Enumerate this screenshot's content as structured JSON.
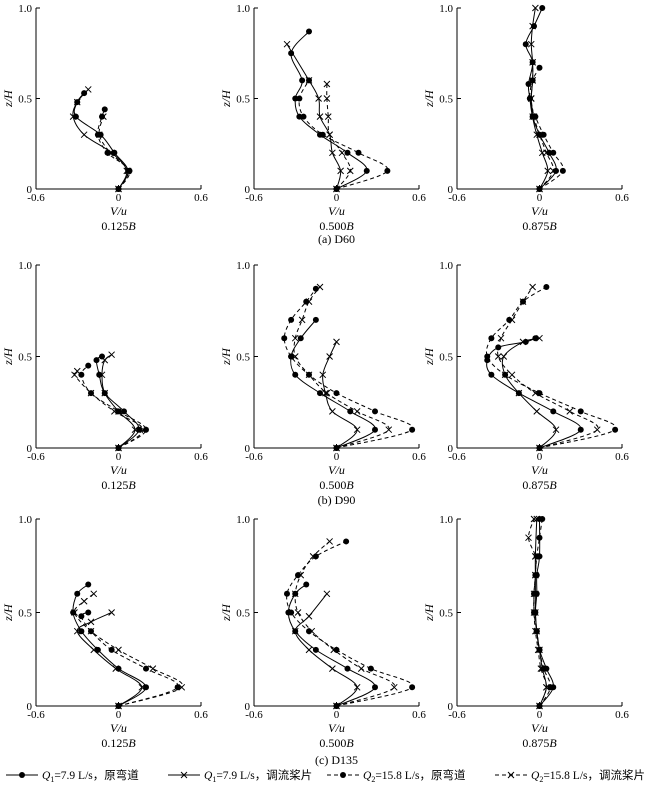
{
  "figure": {
    "row_captions": [
      "(a) D60",
      "(b) D90",
      "(c) D135"
    ],
    "legend": [
      {
        "sym": "Q",
        "sub": "1",
        "text": "=7.9 L/s，原弯道",
        "marker": "dot",
        "dash": false
      },
      {
        "sym": "Q",
        "sub": "1",
        "text": "=7.9 L/s，调流桨片",
        "marker": "cross",
        "dash": false
      },
      {
        "sym": "Q",
        "sub": "2",
        "text": "=15.8 L/s，原弯道",
        "marker": "dot",
        "dash": true
      },
      {
        "sym": "Q",
        "sub": "2",
        "text": "=15.8 L/s，调流桨片",
        "marker": "cross",
        "dash": true
      }
    ]
  },
  "chart_data": [
    {
      "type": "line",
      "row": 0,
      "col": 0,
      "position": "0.125B",
      "xlabel": "V/u",
      "ylabel": "z/H",
      "xlim": [
        -0.6,
        0.6
      ],
      "ylim": [
        0,
        1.0
      ],
      "xticks": [
        "-0.6",
        "0",
        "0.6"
      ],
      "yticks": [
        "0",
        "0.5",
        "1.0"
      ],
      "series": [
        {
          "marker": "dot",
          "dash": false,
          "x": [
            0.0,
            0.07,
            -0.03,
            -0.13,
            -0.31,
            -0.3,
            -0.25
          ],
          "y": [
            0.0,
            0.1,
            0.2,
            0.3,
            0.4,
            0.48,
            0.53
          ]
        },
        {
          "marker": "cross",
          "dash": false,
          "x": [
            0.0,
            0.06,
            -0.05,
            -0.25,
            -0.33,
            -0.3,
            -0.22
          ],
          "y": [
            0.0,
            0.1,
            0.2,
            0.3,
            0.4,
            0.48,
            0.55
          ]
        },
        {
          "marker": "dot",
          "dash": true,
          "x": [
            0.0,
            0.08,
            -0.08,
            -0.15,
            -0.12,
            -0.1
          ],
          "y": [
            0.0,
            0.1,
            0.2,
            0.3,
            0.4,
            0.44
          ]
        },
        {
          "marker": "cross",
          "dash": true,
          "x": [
            0.0,
            0.07,
            -0.06,
            -0.14,
            -0.11
          ],
          "y": [
            0.0,
            0.1,
            0.2,
            0.3,
            0.4
          ]
        }
      ]
    },
    {
      "type": "line",
      "row": 0,
      "col": 1,
      "position": "0.500B",
      "xlabel": "V/u",
      "ylabel": "z/H",
      "xlim": [
        -0.6,
        0.6
      ],
      "ylim": [
        0,
        1.0
      ],
      "xticks": [
        "-0.6",
        "0",
        "0.6"
      ],
      "yticks": [
        "0",
        "0.5",
        "1.0"
      ],
      "series": [
        {
          "marker": "dot",
          "dash": false,
          "x": [
            0.0,
            0.22,
            0.08,
            -0.12,
            -0.27,
            -0.3,
            -0.25,
            -0.33,
            -0.2
          ],
          "y": [
            0.0,
            0.1,
            0.2,
            0.3,
            0.4,
            0.5,
            0.6,
            0.75,
            0.87
          ]
        },
        {
          "marker": "cross",
          "dash": false,
          "x": [
            0.0,
            0.03,
            -0.03,
            -0.05,
            -0.12,
            -0.13,
            -0.2,
            -0.36
          ],
          "y": [
            0.0,
            0.1,
            0.2,
            0.3,
            0.4,
            0.5,
            0.6,
            0.8
          ]
        },
        {
          "marker": "dot",
          "dash": true,
          "x": [
            0.0,
            0.37,
            0.16,
            -0.1,
            -0.24,
            -0.27,
            -0.2
          ],
          "y": [
            0.0,
            0.1,
            0.2,
            0.3,
            0.4,
            0.5,
            0.6
          ]
        },
        {
          "marker": "cross",
          "dash": true,
          "x": [
            0.0,
            0.1,
            0.04,
            -0.05,
            -0.06,
            -0.07,
            -0.07
          ],
          "y": [
            0.0,
            0.1,
            0.2,
            0.3,
            0.4,
            0.5,
            0.58
          ]
        }
      ]
    },
    {
      "type": "line",
      "row": 0,
      "col": 2,
      "position": "0.875B",
      "xlabel": "V/u",
      "ylabel": "z/H",
      "xlim": [
        -0.6,
        0.6
      ],
      "ylim": [
        0,
        1.0
      ],
      "xticks": [
        "-0.6",
        "0",
        "0.6"
      ],
      "yticks": [
        "0",
        "0.5",
        "1.0"
      ],
      "series": [
        {
          "marker": "dot",
          "dash": false,
          "x": [
            0.0,
            0.12,
            0.07,
            0.0,
            -0.05,
            -0.07,
            -0.08,
            -0.05,
            -0.1,
            -0.04,
            0.02
          ],
          "y": [
            0.0,
            0.1,
            0.2,
            0.3,
            0.4,
            0.5,
            0.58,
            0.7,
            0.8,
            0.9,
            1.0
          ]
        },
        {
          "marker": "cross",
          "dash": false,
          "x": [
            0.0,
            0.06,
            0.02,
            -0.02,
            -0.05,
            -0.06,
            -0.05,
            -0.05,
            -0.06,
            -0.05,
            -0.03
          ],
          "y": [
            0.0,
            0.1,
            0.2,
            0.3,
            0.4,
            0.5,
            0.6,
            0.7,
            0.8,
            0.9,
            1.0
          ]
        },
        {
          "marker": "dot",
          "dash": true,
          "x": [
            0.0,
            0.17,
            0.1,
            0.03,
            -0.03,
            -0.07,
            -0.05,
            0.0
          ],
          "y": [
            0.0,
            0.1,
            0.2,
            0.3,
            0.4,
            0.5,
            0.6,
            0.67
          ]
        },
        {
          "marker": "cross",
          "dash": true,
          "x": [
            0.0,
            0.1,
            0.05,
            0.0,
            -0.04,
            -0.06,
            -0.05,
            -0.05
          ],
          "y": [
            0.0,
            0.1,
            0.2,
            0.3,
            0.4,
            0.5,
            0.6,
            0.7
          ]
        }
      ]
    },
    {
      "type": "line",
      "row": 1,
      "col": 0,
      "position": "0.125B",
      "xlabel": "V/u",
      "ylabel": "z/H",
      "xlim": [
        -0.6,
        0.6
      ],
      "ylim": [
        0,
        1.0
      ],
      "xticks": [
        "-0.6",
        "0",
        "0.6"
      ],
      "yticks": [
        "0",
        "0.5",
        "1.0"
      ],
      "series": [
        {
          "marker": "dot",
          "dash": false,
          "x": [
            0.0,
            0.15,
            0.04,
            -0.1,
            -0.14,
            -0.16,
            -0.12
          ],
          "y": [
            0.0,
            0.1,
            0.2,
            0.3,
            0.4,
            0.48,
            0.5
          ]
        },
        {
          "marker": "cross",
          "dash": false,
          "x": [
            0.0,
            0.12,
            0.0,
            -0.1,
            -0.12,
            -0.1,
            -0.05
          ],
          "y": [
            0.0,
            0.1,
            0.2,
            0.3,
            0.4,
            0.48,
            0.51
          ]
        },
        {
          "marker": "dot",
          "dash": true,
          "x": [
            0.0,
            0.2,
            0.0,
            -0.2,
            -0.27,
            -0.22
          ],
          "y": [
            0.0,
            0.1,
            0.2,
            0.3,
            0.4,
            0.45
          ]
        },
        {
          "marker": "cross",
          "dash": true,
          "x": [
            0.0,
            0.18,
            -0.03,
            -0.2,
            -0.32,
            -0.3
          ],
          "y": [
            0.0,
            0.1,
            0.2,
            0.3,
            0.4,
            0.42
          ]
        }
      ]
    },
    {
      "type": "line",
      "row": 1,
      "col": 1,
      "position": "0.500B",
      "xlabel": "V/u",
      "ylabel": "z/H",
      "xlim": [
        -0.6,
        0.6
      ],
      "ylim": [
        0,
        1.0
      ],
      "xticks": [
        "-0.6",
        "0",
        "0.6"
      ],
      "yticks": [
        "0",
        "0.5",
        "1.0"
      ],
      "series": [
        {
          "marker": "dot",
          "dash": false,
          "x": [
            0.0,
            0.28,
            0.1,
            -0.12,
            -0.3,
            -0.33,
            -0.26,
            -0.15
          ],
          "y": [
            0.0,
            0.1,
            0.2,
            0.3,
            0.4,
            0.5,
            0.6,
            0.7
          ]
        },
        {
          "marker": "cross",
          "dash": false,
          "x": [
            0.0,
            0.15,
            -0.03,
            -0.08,
            -0.1,
            -0.05,
            0.0
          ],
          "y": [
            0.0,
            0.1,
            0.2,
            0.3,
            0.4,
            0.5,
            0.58
          ]
        },
        {
          "marker": "dot",
          "dash": true,
          "x": [
            0.0,
            0.55,
            0.28,
            0.0,
            -0.2,
            -0.33,
            -0.38,
            -0.33,
            -0.22,
            -0.15
          ],
          "y": [
            0.0,
            0.1,
            0.2,
            0.3,
            0.4,
            0.5,
            0.6,
            0.7,
            0.8,
            0.87
          ]
        },
        {
          "marker": "cross",
          "dash": true,
          "x": [
            0.0,
            0.38,
            0.15,
            -0.07,
            -0.2,
            -0.3,
            -0.3,
            -0.25,
            -0.2,
            -0.12
          ],
          "y": [
            0.0,
            0.1,
            0.2,
            0.3,
            0.4,
            0.5,
            0.6,
            0.7,
            0.8,
            0.88
          ]
        }
      ]
    },
    {
      "type": "line",
      "row": 1,
      "col": 2,
      "position": "0.875B",
      "xlabel": "V/u",
      "ylabel": "z/H",
      "xlim": [
        -0.6,
        0.6
      ],
      "ylim": [
        0,
        1.0
      ],
      "xticks": [
        "-0.6",
        "0",
        "0.6"
      ],
      "yticks": [
        "0",
        "0.5",
        "1.0"
      ],
      "series": [
        {
          "marker": "dot",
          "dash": false,
          "x": [
            0.0,
            0.3,
            0.1,
            -0.15,
            -0.35,
            -0.38,
            -0.3,
            -0.1,
            -0.03
          ],
          "y": [
            0.0,
            0.1,
            0.2,
            0.3,
            0.4,
            0.48,
            0.55,
            0.58,
            0.6
          ]
        },
        {
          "marker": "cross",
          "dash": false,
          "x": [
            0.0,
            0.12,
            -0.02,
            -0.15,
            -0.25,
            -0.26,
            -0.12,
            0.0
          ],
          "y": [
            0.0,
            0.1,
            0.2,
            0.3,
            0.4,
            0.5,
            0.58,
            0.6
          ]
        },
        {
          "marker": "dot",
          "dash": true,
          "x": [
            0.0,
            0.55,
            0.3,
            0.0,
            -0.25,
            -0.38,
            -0.35,
            -0.22,
            -0.12,
            0.05
          ],
          "y": [
            0.0,
            0.1,
            0.2,
            0.3,
            0.4,
            0.5,
            0.6,
            0.7,
            0.8,
            0.88
          ]
        },
        {
          "marker": "cross",
          "dash": true,
          "x": [
            0.0,
            0.42,
            0.22,
            -0.03,
            -0.2,
            -0.3,
            -0.28,
            -0.2,
            -0.12,
            -0.05
          ],
          "y": [
            0.0,
            0.1,
            0.2,
            0.3,
            0.4,
            0.5,
            0.6,
            0.7,
            0.8,
            0.88
          ]
        }
      ]
    },
    {
      "type": "line",
      "row": 2,
      "col": 0,
      "position": "0.125B",
      "xlabel": "V/u",
      "ylabel": "z/H",
      "xlim": [
        -0.6,
        0.6
      ],
      "ylim": [
        0,
        1.0
      ],
      "xticks": [
        "-0.6",
        "0",
        "0.6"
      ],
      "yticks": [
        "0",
        "0.5",
        "1.0"
      ],
      "series": [
        {
          "marker": "dot",
          "dash": false,
          "x": [
            0.0,
            0.2,
            0.0,
            -0.15,
            -0.27,
            -0.33,
            -0.3,
            -0.22
          ],
          "y": [
            0.0,
            0.1,
            0.2,
            0.3,
            0.4,
            0.5,
            0.6,
            0.65
          ]
        },
        {
          "marker": "cross",
          "dash": false,
          "x": [
            0.0,
            0.17,
            -0.02,
            -0.18,
            -0.3,
            -0.2,
            -0.05
          ],
          "y": [
            0.0,
            0.1,
            0.2,
            0.3,
            0.4,
            0.45,
            0.5
          ]
        },
        {
          "marker": "dot",
          "dash": true,
          "x": [
            0.0,
            0.43,
            0.2,
            -0.05,
            -0.2,
            -0.27,
            -0.22
          ],
          "y": [
            0.0,
            0.1,
            0.2,
            0.3,
            0.4,
            0.48,
            0.5
          ]
        },
        {
          "marker": "cross",
          "dash": true,
          "x": [
            0.0,
            0.46,
            0.25,
            0.0,
            -0.2,
            -0.32,
            -0.25,
            -0.18
          ],
          "y": [
            0.0,
            0.1,
            0.2,
            0.3,
            0.4,
            0.5,
            0.56,
            0.6
          ]
        }
      ]
    },
    {
      "type": "line",
      "row": 2,
      "col": 1,
      "position": "0.500B",
      "xlabel": "V/u",
      "ylabel": "z/H",
      "xlim": [
        -0.6,
        0.6
      ],
      "ylim": [
        0,
        1.0
      ],
      "xticks": [
        "-0.6",
        "0",
        "0.6"
      ],
      "yticks": [
        "0",
        "0.5",
        "1.0"
      ],
      "series": [
        {
          "marker": "dot",
          "dash": false,
          "x": [
            0.0,
            0.28,
            0.08,
            -0.15,
            -0.3,
            -0.35,
            -0.3,
            -0.22
          ],
          "y": [
            0.0,
            0.1,
            0.2,
            0.3,
            0.4,
            0.5,
            0.6,
            0.65
          ]
        },
        {
          "marker": "cross",
          "dash": false,
          "x": [
            0.0,
            0.15,
            -0.03,
            -0.2,
            -0.3,
            -0.2,
            -0.07
          ],
          "y": [
            0.0,
            0.1,
            0.2,
            0.3,
            0.4,
            0.48,
            0.6
          ]
        },
        {
          "marker": "dot",
          "dash": true,
          "x": [
            0.0,
            0.55,
            0.25,
            0.0,
            -0.2,
            -0.33,
            -0.36,
            -0.28,
            -0.15,
            0.07
          ],
          "y": [
            0.0,
            0.1,
            0.2,
            0.3,
            0.4,
            0.5,
            0.6,
            0.7,
            0.8,
            0.88
          ]
        },
        {
          "marker": "cross",
          "dash": true,
          "x": [
            0.0,
            0.42,
            0.18,
            -0.02,
            -0.18,
            -0.28,
            -0.3,
            -0.26,
            -0.17,
            -0.05
          ],
          "y": [
            0.0,
            0.1,
            0.2,
            0.3,
            0.4,
            0.5,
            0.6,
            0.7,
            0.8,
            0.88
          ]
        }
      ]
    },
    {
      "type": "line",
      "row": 2,
      "col": 2,
      "position": "0.875B",
      "xlabel": "V/u",
      "ylabel": "z/H",
      "xlim": [
        -0.6,
        0.6
      ],
      "ylim": [
        0,
        1.0
      ],
      "xticks": [
        "-0.6",
        "0",
        "0.6"
      ],
      "yticks": [
        "0",
        "0.5",
        "1.0"
      ],
      "series": [
        {
          "marker": "dot",
          "dash": false,
          "x": [
            0.0,
            0.1,
            0.05,
            0.0,
            -0.02,
            -0.03,
            -0.02,
            -0.02,
            0.0,
            0.0
          ],
          "y": [
            0.0,
            0.1,
            0.2,
            0.3,
            0.4,
            0.5,
            0.6,
            0.7,
            0.8,
            1.0
          ]
        },
        {
          "marker": "cross",
          "dash": false,
          "x": [
            0.0,
            0.05,
            0.02,
            0.0,
            -0.02,
            -0.03,
            -0.03,
            -0.03,
            -0.03,
            -0.02
          ],
          "y": [
            0.0,
            0.1,
            0.2,
            0.3,
            0.4,
            0.5,
            0.6,
            0.7,
            0.8,
            1.0
          ]
        },
        {
          "marker": "dot",
          "dash": true,
          "x": [
            0.0,
            0.08,
            0.03,
            0.0,
            -0.02,
            -0.04,
            -0.04,
            -0.03,
            -0.02,
            0.0,
            0.02
          ],
          "y": [
            0.0,
            0.1,
            0.2,
            0.3,
            0.4,
            0.5,
            0.6,
            0.7,
            0.8,
            0.9,
            1.0
          ]
        },
        {
          "marker": "cross",
          "dash": true,
          "x": [
            0.0,
            0.05,
            0.01,
            -0.01,
            -0.03,
            -0.04,
            -0.04,
            -0.03,
            -0.03,
            -0.08,
            -0.04
          ],
          "y": [
            0.0,
            0.1,
            0.2,
            0.3,
            0.4,
            0.5,
            0.6,
            0.7,
            0.8,
            0.9,
            1.0
          ]
        }
      ]
    }
  ]
}
